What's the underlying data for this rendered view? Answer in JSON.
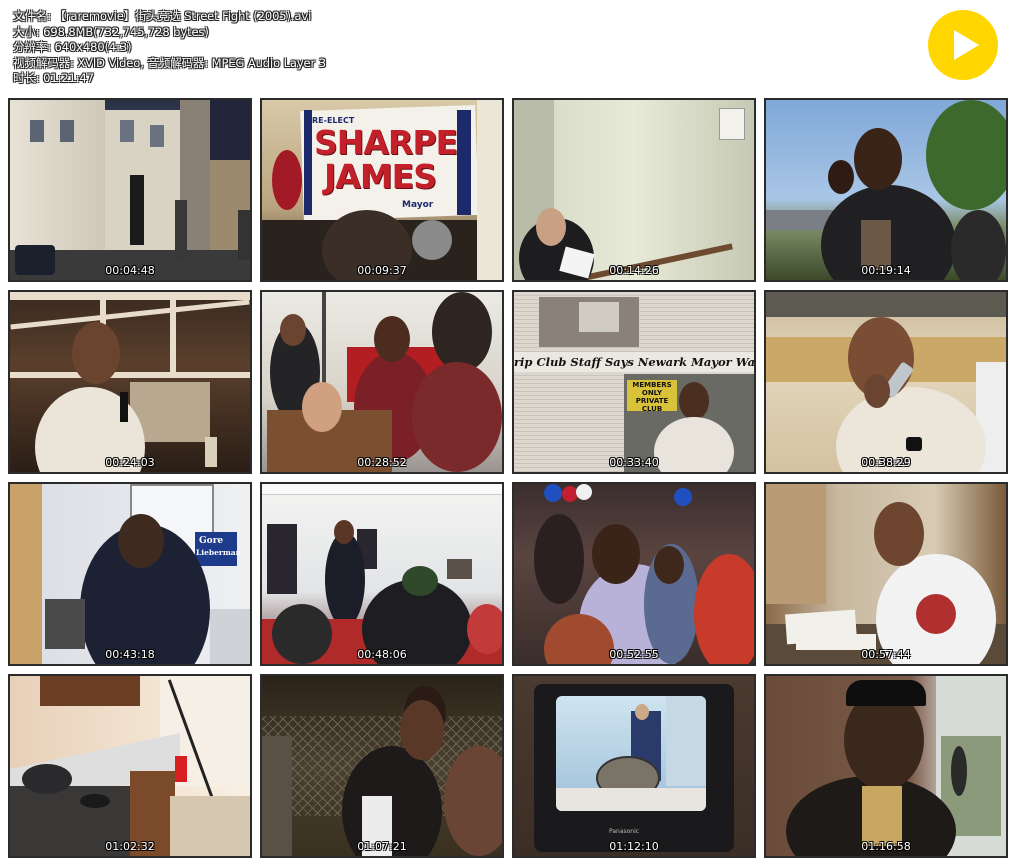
{
  "file_info": {
    "filename": "文件名: 【raremovie】街头竞选 Street Fight (2005).avi",
    "size": "大小: 698.8MB(732,745,728 bytes)",
    "resolution": "分辨率: 640x480(4:3)",
    "codec": "视频解码器: XVID Video, 音频解码器: MPEG Audio Layer 3",
    "duration": "时长: 01:21:47"
  },
  "thumbnails": [
    {
      "time": "00:04:48",
      "scene": "street-houses"
    },
    {
      "time": "00:09:37",
      "scene": "sharpe-james-banner",
      "banner_text_1": "SHARPE",
      "banner_text_2": "JAMES",
      "banner_small_top": "RE-ELECT",
      "banner_small_bottom": "Mayor"
    },
    {
      "time": "00:14:26",
      "scene": "man-stairwell"
    },
    {
      "time": "00:19:14",
      "scene": "outdoor-crowd"
    },
    {
      "time": "00:24:03",
      "scene": "speaker-microphone"
    },
    {
      "time": "00:28:52",
      "scene": "podium-speech"
    },
    {
      "time": "00:33:40",
      "scene": "newspaper",
      "headline": "rip Club Staff Says Newark Mayor Was a Patron",
      "sign_text": "MEMBERS ONLY PRIVATE CLUB"
    },
    {
      "time": "00:38:29",
      "scene": "phone-call"
    },
    {
      "time": "00:43:18",
      "scene": "office-poster",
      "poster_text_1": "Gore",
      "poster_text_2": "Lieberman"
    },
    {
      "time": "00:48:06",
      "scene": "meeting-hall"
    },
    {
      "time": "00:52:55",
      "scene": "party-crowd"
    },
    {
      "time": "00:57:44",
      "scene": "man-at-desk"
    },
    {
      "time": "01:02:32",
      "scene": "kitchen"
    },
    {
      "time": "01:07:21",
      "scene": "boys-fence"
    },
    {
      "time": "01:12:10",
      "scene": "tv-set",
      "tv_brand": "Panasonic"
    },
    {
      "time": "01:16:58",
      "scene": "man-with-cap"
    }
  ],
  "colors": {
    "play_button": "#ffd600",
    "thumb_border": "#2b2b2b"
  }
}
